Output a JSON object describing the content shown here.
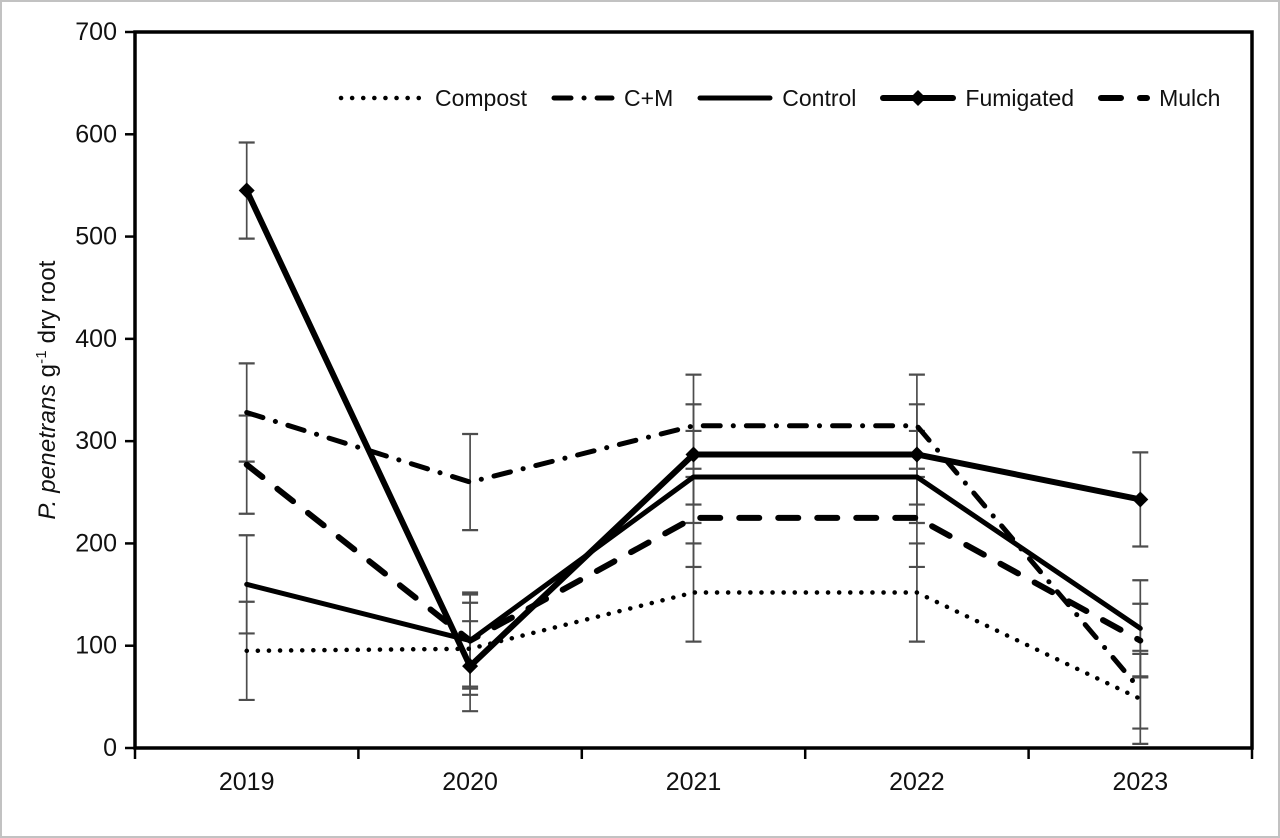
{
  "figure": {
    "background": "#ffffff",
    "frame_border_color": "#c2c2c2",
    "axis_color": "#000000",
    "error_bar_color": "#4d4d4d",
    "text_color": "#111111"
  },
  "chart_data": {
    "type": "line",
    "title": "",
    "xlabel": "",
    "ylabel": "P. penetrans g-1 dry root",
    "ylabel_parts": {
      "species": "P. penetrans",
      "unit_pre": " g",
      "unit_sup": "-1",
      "unit_post": " dry root"
    },
    "categories": [
      "2019",
      "2020",
      "2021",
      "2022",
      "2023"
    ],
    "ylim": [
      0,
      700
    ],
    "yticks": [
      0,
      100,
      200,
      300,
      400,
      500,
      600,
      700
    ],
    "grid": false,
    "legend_position": "top-center-inside",
    "legend_order": [
      "Compost",
      "C+M",
      "Control",
      "Fumigated",
      "Mulch"
    ],
    "error_bars": true,
    "series": [
      {
        "name": "Compost",
        "style": "dotted",
        "marker": "none",
        "color": "#000000",
        "values": [
          95,
          97,
          152,
          152,
          48
        ],
        "errors": [
          48,
          45,
          48,
          48,
          44
        ]
      },
      {
        "name": "C+M",
        "style": "dashdot",
        "marker": "none",
        "color": "#000000",
        "values": [
          328,
          260,
          315,
          315,
          57
        ],
        "errors": [
          48,
          47,
          50,
          50,
          38
        ]
      },
      {
        "name": "Control",
        "style": "solid",
        "marker": "none",
        "color": "#000000",
        "values": [
          160,
          105,
          265,
          265,
          117
        ],
        "errors": [
          48,
          45,
          45,
          45,
          47
        ]
      },
      {
        "name": "Fumigated",
        "style": "solid",
        "marker": "diamond",
        "color": "#000000",
        "values": [
          545,
          80,
          287,
          287,
          243
        ],
        "errors": [
          47,
          44,
          49,
          49,
          46
        ]
      },
      {
        "name": "Mulch",
        "style": "dashed",
        "marker": "none",
        "color": "#000000",
        "values": [
          277,
          105,
          225,
          225,
          105
        ],
        "errors": [
          48,
          47,
          48,
          48,
          36
        ]
      }
    ]
  }
}
